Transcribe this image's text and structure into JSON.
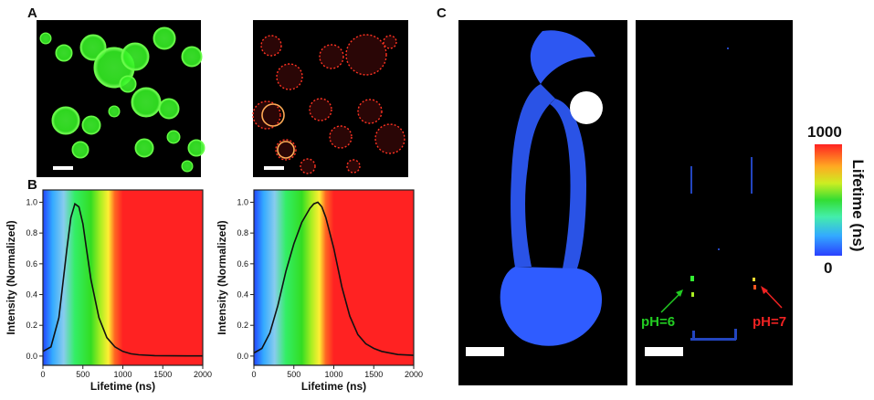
{
  "figure": {
    "panels": {
      "a": "A",
      "b": "B",
      "c": "C"
    },
    "annotations": {
      "ph6": "pH=6",
      "ph7": "pH=7"
    },
    "colorbar": {
      "max": "1000",
      "min": "0",
      "label": "Lifetime (ns)"
    }
  },
  "colors": {
    "green_channel": "#33ff22",
    "red_channel": "#ff3322",
    "flim_blue": "#2f5cff",
    "ph6_color": "#22cc22",
    "ph7_color": "#ee2222"
  },
  "chart_data": [
    {
      "type": "line",
      "xlabel": "Lifetime (ns)",
      "ylabel": "Intensity (Normalized)",
      "xlim": [
        0,
        2000
      ],
      "ylim": [
        -0.06,
        1.08
      ],
      "xticks": [
        "0",
        "500",
        "1000",
        "1500",
        "2000"
      ],
      "yticks": [
        "0.0",
        "0.2",
        "0.4",
        "0.6",
        "0.8",
        "1.0"
      ],
      "background": "lifetime colour gradient (blue to red)",
      "series": [
        {
          "x": [
            0,
            100,
            200,
            300,
            350,
            400,
            450,
            500,
            550,
            600,
            700,
            800,
            900,
            1000,
            1100,
            1200,
            1400,
            1600,
            1800,
            2000
          ],
          "values": [
            0.03,
            0.06,
            0.25,
            0.7,
            0.9,
            0.99,
            0.97,
            0.86,
            0.68,
            0.5,
            0.25,
            0.12,
            0.06,
            0.03,
            0.015,
            0.008,
            0.003,
            0.002,
            0.001,
            0.001
          ]
        }
      ]
    },
    {
      "type": "line",
      "xlabel": "Lifetime (ns)",
      "ylabel": "Intensity (Normalized)",
      "xlim": [
        0,
        2000
      ],
      "ylim": [
        -0.06,
        1.08
      ],
      "xticks": [
        "0",
        "500",
        "1000",
        "1500",
        "2000"
      ],
      "yticks": [
        "0.0",
        "0.2",
        "0.4",
        "0.6",
        "0.8",
        "1.0"
      ],
      "background": "lifetime colour gradient (blue to red)",
      "series": [
        {
          "x": [
            0,
            100,
            200,
            300,
            400,
            500,
            600,
            700,
            750,
            800,
            850,
            900,
            1000,
            1100,
            1200,
            1300,
            1400,
            1500,
            1600,
            1800,
            2000
          ],
          "values": [
            0.02,
            0.05,
            0.15,
            0.33,
            0.55,
            0.73,
            0.87,
            0.96,
            0.99,
            1.0,
            0.97,
            0.9,
            0.7,
            0.45,
            0.26,
            0.14,
            0.08,
            0.05,
            0.03,
            0.01,
            0.005
          ]
        }
      ]
    }
  ]
}
